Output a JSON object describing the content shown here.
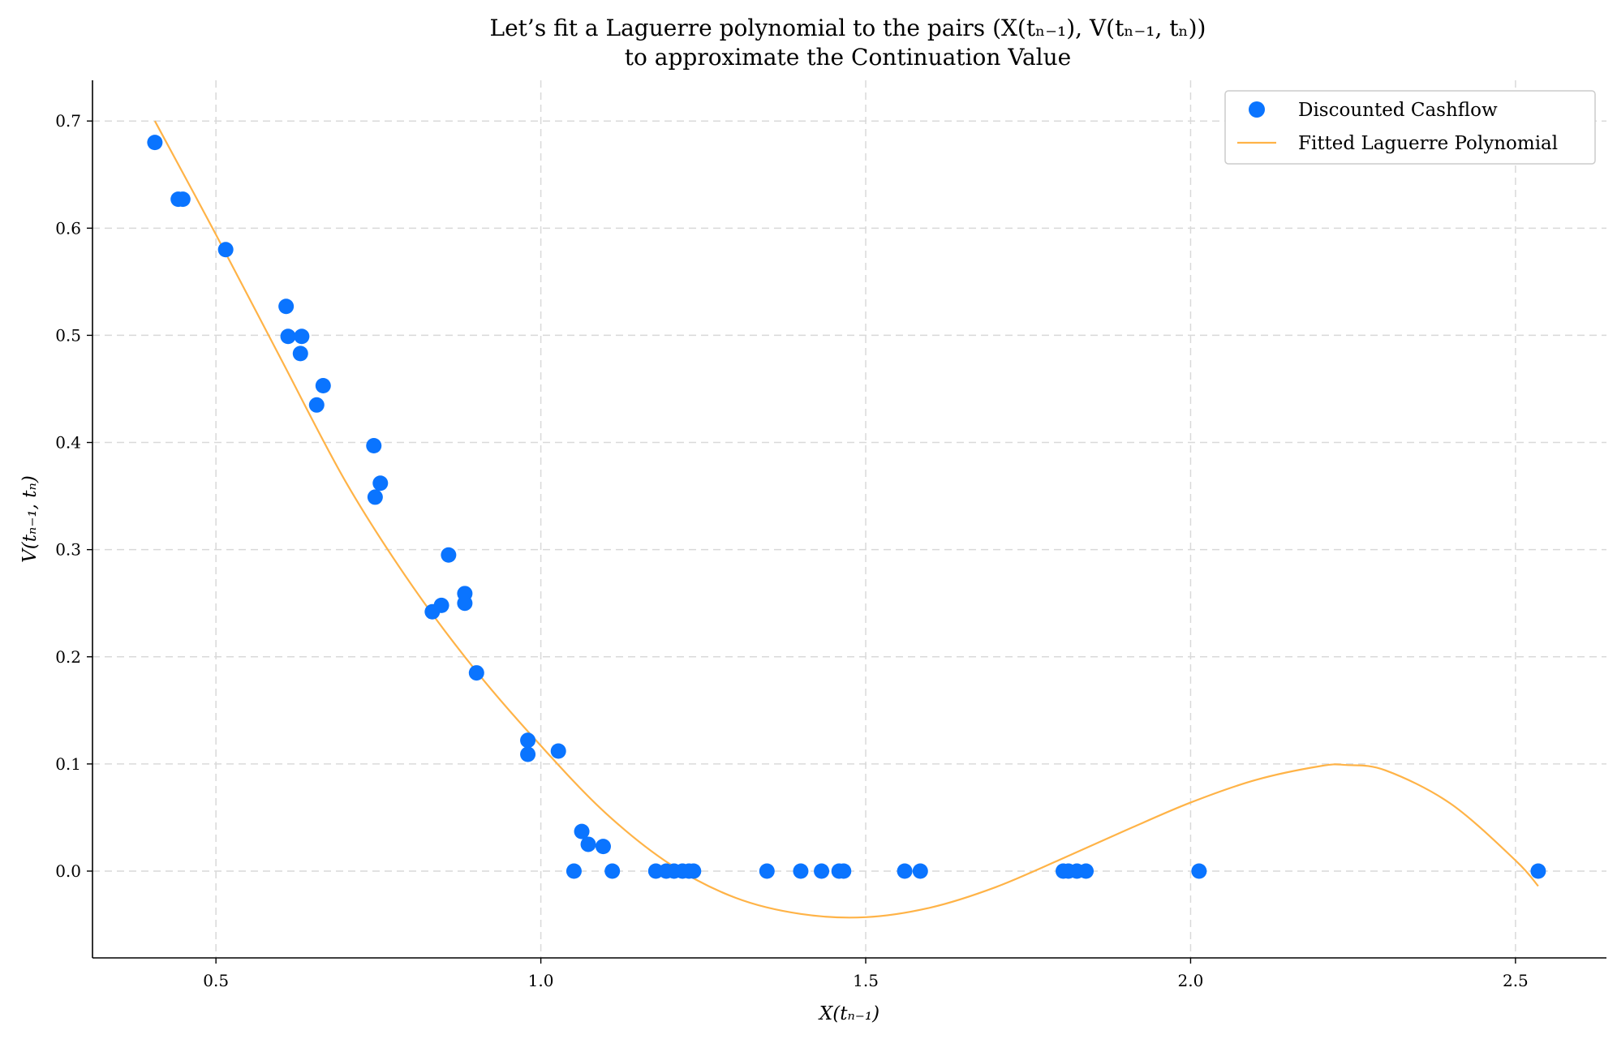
{
  "chart_data": {
    "type": "scatter",
    "title_line1": "Let’s fit a Laguerre polynomial to the pairs (X(tₙ₋₁), V(tₙ₋₁, tₙ))",
    "title_line2": "to approximate the Continuation Value",
    "xlabel": "X(tₙ₋₁)",
    "ylabel": "V(tₙ₋₁, tₙ)",
    "xlim": [
      0.31,
      2.64
    ],
    "ylim": [
      -0.081,
      0.738
    ],
    "xticks": [
      0.5,
      1.0,
      1.5,
      2.0,
      2.5
    ],
    "xtick_labels": [
      "0.5",
      "1.0",
      "1.5",
      "2.0",
      "2.5"
    ],
    "yticks": [
      0.0,
      0.1,
      0.2,
      0.3,
      0.4,
      0.5,
      0.6,
      0.7
    ],
    "ytick_labels": [
      "0.0",
      "0.1",
      "0.2",
      "0.3",
      "0.4",
      "0.5",
      "0.6",
      "0.7"
    ],
    "grid": true,
    "legend_position": "top-right",
    "scatter_color": "#0a74ff",
    "line_color": "#ffb347",
    "series": [
      {
        "name": "Discounted Cashflow",
        "kind": "scatter",
        "points": [
          [
            0.406,
            0.68
          ],
          [
            0.442,
            0.627
          ],
          [
            0.449,
            0.627
          ],
          [
            0.515,
            0.58
          ],
          [
            0.608,
            0.527
          ],
          [
            0.611,
            0.499
          ],
          [
            0.632,
            0.499
          ],
          [
            0.63,
            0.483
          ],
          [
            0.655,
            0.435
          ],
          [
            0.665,
            0.453
          ],
          [
            0.743,
            0.397
          ],
          [
            0.745,
            0.349
          ],
          [
            0.753,
            0.362
          ],
          [
            0.858,
            0.295
          ],
          [
            0.833,
            0.242
          ],
          [
            0.847,
            0.248
          ],
          [
            0.883,
            0.259
          ],
          [
            0.883,
            0.25
          ],
          [
            0.901,
            0.185
          ],
          [
            0.98,
            0.122
          ],
          [
            0.98,
            0.109
          ],
          [
            1.027,
            0.112
          ],
          [
            1.063,
            0.037
          ],
          [
            1.073,
            0.025
          ],
          [
            1.096,
            0.023
          ],
          [
            1.051,
            0.0
          ],
          [
            1.11,
            0.0
          ],
          [
            1.177,
            0.0
          ],
          [
            1.193,
            0.0
          ],
          [
            1.205,
            0.0
          ],
          [
            1.218,
            0.0
          ],
          [
            1.228,
            0.0
          ],
          [
            1.235,
            0.0
          ],
          [
            1.348,
            0.0
          ],
          [
            1.4,
            0.0
          ],
          [
            1.432,
            0.0
          ],
          [
            1.459,
            0.0
          ],
          [
            1.466,
            0.0
          ],
          [
            1.56,
            0.0
          ],
          [
            1.584,
            0.0
          ],
          [
            1.804,
            0.0
          ],
          [
            1.812,
            0.0
          ],
          [
            1.825,
            0.0
          ],
          [
            1.839,
            0.0
          ],
          [
            2.013,
            0.0
          ],
          [
            2.535,
            0.0
          ]
        ]
      },
      {
        "name": "Fitted Laguerre Polynomial",
        "kind": "line",
        "points": [
          [
            0.406,
            0.7
          ],
          [
            0.5,
            0.594
          ],
          [
            0.6,
            0.478
          ],
          [
            0.7,
            0.363
          ],
          [
            0.8,
            0.268
          ],
          [
            0.9,
            0.187
          ],
          [
            1.0,
            0.117
          ],
          [
            1.1,
            0.054
          ],
          [
            1.2,
            0.006
          ],
          [
            1.3,
            -0.025
          ],
          [
            1.4,
            -0.04
          ],
          [
            1.5,
            -0.043
          ],
          [
            1.6,
            -0.034
          ],
          [
            1.7,
            -0.015
          ],
          [
            1.8,
            0.011
          ],
          [
            1.9,
            0.038
          ],
          [
            2.0,
            0.064
          ],
          [
            2.1,
            0.085
          ],
          [
            2.2,
            0.098
          ],
          [
            2.24,
            0.099
          ],
          [
            2.3,
            0.094
          ],
          [
            2.4,
            0.063
          ],
          [
            2.5,
            0.01
          ],
          [
            2.535,
            -0.014
          ]
        ]
      }
    ]
  }
}
